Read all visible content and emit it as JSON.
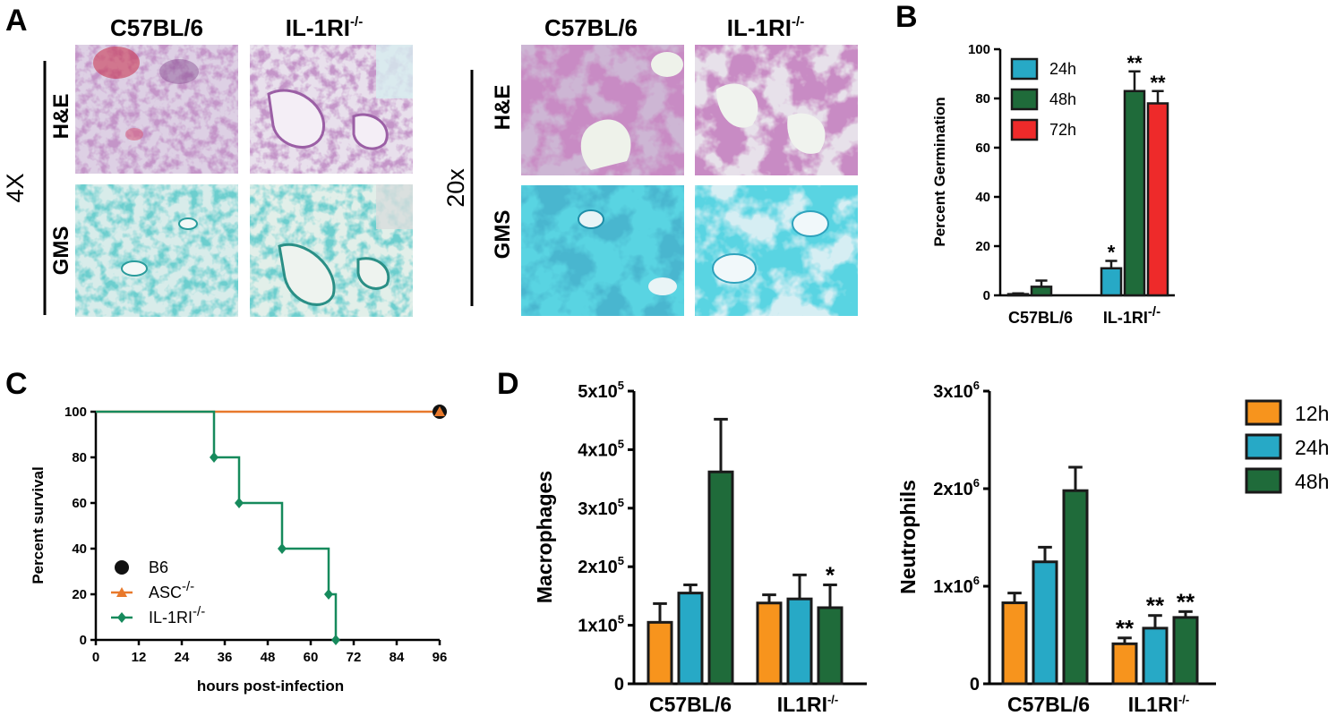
{
  "panel_labels": {
    "a": "A",
    "b": "B",
    "c": "C",
    "d": "D"
  },
  "panel_a": {
    "col_strain_1": "C57BL/6",
    "col_strain_2_base": "IL-1RI",
    "col_strain_2_sup": "-/-",
    "mag_low": "4X",
    "mag_high": "20x",
    "row_stain_1": "H&E",
    "row_stain_2": "GMS"
  },
  "colors": {
    "c12h": "#f7941d",
    "c24h": "#27a9c6",
    "c48h": "#1f6b3a",
    "c72h": "#ee2a2a",
    "b6": "#111111",
    "asc": "#e8792c",
    "il1ri": "#168a5c"
  },
  "panel_b": {
    "chart_data": {
      "type": "bar",
      "categories": [
        "C57BL/6",
        "IL-1RI-/-"
      ],
      "ylabel": "Percent Germination",
      "ylim": [
        0,
        100
      ],
      "yticks": [
        0,
        20,
        40,
        60,
        80,
        100
      ],
      "series": [
        {
          "name": "24h",
          "values": [
            0.5,
            11
          ],
          "errors": [
            0.3,
            3
          ],
          "annotations": [
            "",
            "*"
          ]
        },
        {
          "name": "48h",
          "values": [
            3.5,
            83
          ],
          "errors": [
            2.5,
            8
          ],
          "annotations": [
            "",
            "**"
          ]
        },
        {
          "name": "72h",
          "values": [
            null,
            78
          ],
          "errors": [
            null,
            5
          ],
          "annotations": [
            "",
            "**"
          ]
        }
      ],
      "cat_1": "C57BL/6",
      "cat_2_base": "IL-1RI",
      "cat_2_sup": "-/-"
    }
  },
  "panel_c": {
    "chart_data": {
      "type": "line",
      "step": true,
      "xlabel": "hours post-infection",
      "ylabel": "Percent survival",
      "xlim": [
        0,
        96
      ],
      "ylim": [
        0,
        100
      ],
      "xticks": [
        0,
        12,
        24,
        36,
        48,
        60,
        72,
        84,
        96
      ],
      "yticks": [
        0,
        20,
        40,
        60,
        80,
        100
      ],
      "series": [
        {
          "name": "B6",
          "x": [
            0,
            96
          ],
          "y": [
            100,
            100
          ],
          "markers": [
            [
              96,
              100
            ]
          ]
        },
        {
          "name": "ASC-/-",
          "x": [
            0,
            96
          ],
          "y": [
            100,
            100
          ],
          "markers": [
            [
              96,
              100
            ]
          ]
        },
        {
          "name": "IL-1RI-/-",
          "x": [
            0,
            33,
            40,
            52,
            65,
            67
          ],
          "y": [
            100,
            80,
            60,
            40,
            20,
            0
          ],
          "markers": [
            [
              33,
              80
            ],
            [
              40,
              60
            ],
            [
              52,
              40
            ],
            [
              65,
              20
            ],
            [
              67,
              0
            ]
          ]
        }
      ],
      "legend": [
        {
          "base": "B6",
          "sup": ""
        },
        {
          "base": "ASC",
          "sup": "-/-"
        },
        {
          "base": "IL-1RI",
          "sup": "-/-"
        }
      ]
    }
  },
  "panel_d": {
    "legend": [
      "12h",
      "24h",
      "48h"
    ],
    "chart_data": [
      {
        "type": "bar",
        "ylabel": "Macrophages",
        "categories": [
          "C57BL/6",
          "IL1RI-/-"
        ],
        "ylim": [
          0,
          500000
        ],
        "yticks": [
          0,
          100000,
          200000,
          300000,
          400000,
          500000
        ],
        "ytick_labels": [
          {
            "base": "0",
            "sup": ""
          },
          {
            "base": "1x10",
            "sup": "5"
          },
          {
            "base": "2x10",
            "sup": "5"
          },
          {
            "base": "3x10",
            "sup": "5"
          },
          {
            "base": "4x10",
            "sup": "5"
          },
          {
            "base": "5x10",
            "sup": "5"
          }
        ],
        "series": [
          {
            "name": "12h",
            "values": [
              105000,
              138000
            ],
            "errors": [
              32000,
              14000
            ],
            "annotations": [
              "",
              ""
            ]
          },
          {
            "name": "24h",
            "values": [
              155000,
              145000
            ],
            "errors": [
              14000,
              41000
            ],
            "annotations": [
              "",
              ""
            ]
          },
          {
            "name": "48h",
            "values": [
              362000,
              130000
            ],
            "errors": [
              90000,
              39000
            ],
            "annotations": [
              "",
              "*"
            ]
          }
        ],
        "cat_1": "C57BL/6",
        "cat_2_base": "IL1RI",
        "cat_2_sup": "-/-"
      },
      {
        "type": "bar",
        "ylabel": "Neutrophils",
        "categories": [
          "C57BL/6",
          "IL1RI-/-"
        ],
        "ylim": [
          0,
          3000000
        ],
        "yticks": [
          0,
          1000000,
          2000000,
          3000000
        ],
        "ytick_labels": [
          {
            "base": "0",
            "sup": ""
          },
          {
            "base": "1x10",
            "sup": "6"
          },
          {
            "base": "2x10",
            "sup": "6"
          },
          {
            "base": "3x10",
            "sup": "6"
          }
        ],
        "series": [
          {
            "name": "12h",
            "values": [
              830000,
              410000
            ],
            "errors": [
              100000,
              60000
            ],
            "annotations": [
              "",
              "**"
            ]
          },
          {
            "name": "24h",
            "values": [
              1250000,
              570000
            ],
            "errors": [
              150000,
              130000
            ],
            "annotations": [
              "",
              "**"
            ]
          },
          {
            "name": "48h",
            "values": [
              1980000,
              680000
            ],
            "errors": [
              240000,
              60000
            ],
            "annotations": [
              "",
              "**"
            ]
          }
        ],
        "cat_1": "C57BL/6",
        "cat_2_base": "IL1RI",
        "cat_2_sup": "-/-"
      }
    ]
  }
}
